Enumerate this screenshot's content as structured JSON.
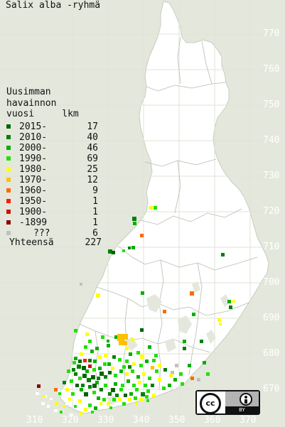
{
  "title": "Salix alba -ryhmä",
  "legend": {
    "heading": "Uusimman\nhavainnon\nvuosi     lkm",
    "heading_lines": [
      "Uusimman",
      "havainnon",
      "vuosi",
      "lkm"
    ],
    "rows": [
      {
        "label": "2015-",
        "count": "17",
        "color": "#006400"
      },
      {
        "label": "2010-",
        "count": "40",
        "color": "#008000"
      },
      {
        "label": "2000-",
        "count": "46",
        "color": "#00b000"
      },
      {
        "label": "1990-",
        "count": "69",
        "color": "#22e000"
      },
      {
        "label": "1980-",
        "count": "25",
        "color": "#ffff00"
      },
      {
        "label": "1970-",
        "count": "12",
        "color": "#ffc000"
      },
      {
        "label": "1960-",
        "count": "9",
        "color": "#ff6a00"
      },
      {
        "label": "1950-",
        "count": "1",
        "color": "#ff1a00"
      },
      {
        "label": "1900-",
        "count": "1",
        "color": "#cc1100"
      },
      {
        "label": "-1899",
        "count": "1",
        "color": "#8b0000"
      },
      {
        "label": "???",
        "count": "6",
        "color": "#c0c0c0"
      }
    ],
    "total_label": "Yhteensä",
    "total_count": "227"
  },
  "axes": {
    "x_ticks": [
      "310",
      "320",
      "330",
      "340",
      "350",
      "360",
      "370"
    ],
    "y_ticks": [
      "770",
      "760",
      "750",
      "740",
      "730",
      "720",
      "710",
      "700",
      "690",
      "680",
      "670"
    ]
  },
  "license": {
    "cc": "cc",
    "by": "BY"
  },
  "colors": {
    "background": "#e4e8dc",
    "land": "#ffffff",
    "grid": "#d8dcd0",
    "border": "#b4b8ac"
  }
}
